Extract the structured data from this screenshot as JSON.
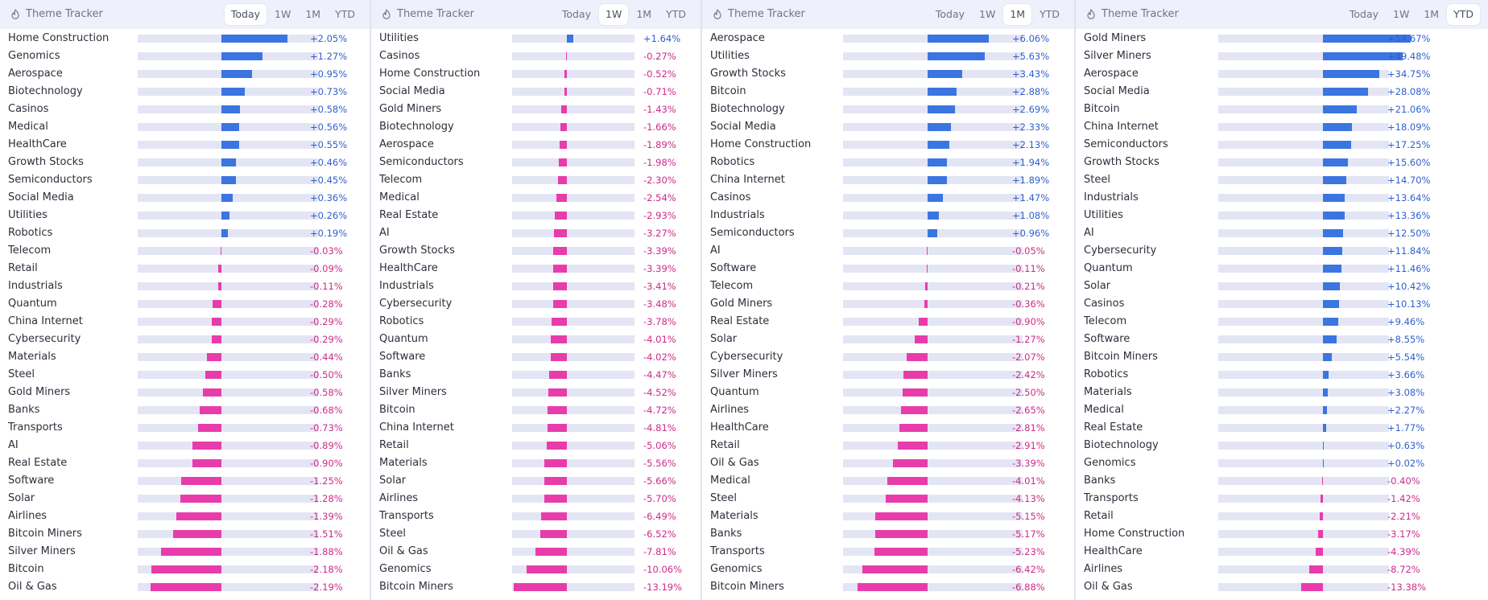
{
  "colors": {
    "positive_bar": "#3b75e0",
    "negative_bar": "#e83cab",
    "positive_text": "#2f5fcc",
    "negative_text": "#cc2a8a",
    "track": "#e4e5f4"
  },
  "tab_labels": [
    "Today",
    "1W",
    "1M",
    "YTD"
  ],
  "panels": [
    {
      "title": "Theme Tracker",
      "icon": "flame-icon",
      "active_tab": "Today",
      "rows": [
        {
          "name": "Home Construction",
          "value": 2.05,
          "label": "+2.05%"
        },
        {
          "name": "Genomics",
          "value": 1.27,
          "label": "+1.27%"
        },
        {
          "name": "Aerospace",
          "value": 0.95,
          "label": "+0.95%"
        },
        {
          "name": "Biotechnology",
          "value": 0.73,
          "label": "+0.73%"
        },
        {
          "name": "Casinos",
          "value": 0.58,
          "label": "+0.58%"
        },
        {
          "name": "Medical",
          "value": 0.56,
          "label": "+0.56%"
        },
        {
          "name": "HealthCare",
          "value": 0.55,
          "label": "+0.55%"
        },
        {
          "name": "Growth Stocks",
          "value": 0.46,
          "label": "+0.46%"
        },
        {
          "name": "Semiconductors",
          "value": 0.45,
          "label": "+0.45%"
        },
        {
          "name": "Social Media",
          "value": 0.36,
          "label": "+0.36%"
        },
        {
          "name": "Utilities",
          "value": 0.26,
          "label": "+0.26%"
        },
        {
          "name": "Robotics",
          "value": 0.19,
          "label": "+0.19%"
        },
        {
          "name": "Telecom",
          "value": -0.03,
          "label": "-0.03%"
        },
        {
          "name": "Retail",
          "value": -0.09,
          "label": "-0.09%"
        },
        {
          "name": "Industrials",
          "value": -0.11,
          "label": "-0.11%"
        },
        {
          "name": "Quantum",
          "value": -0.28,
          "label": "-0.28%"
        },
        {
          "name": "China Internet",
          "value": -0.29,
          "label": "-0.29%"
        },
        {
          "name": "Cybersecurity",
          "value": -0.29,
          "label": "-0.29%"
        },
        {
          "name": "Materials",
          "value": -0.44,
          "label": "-0.44%"
        },
        {
          "name": "Steel",
          "value": -0.5,
          "label": "-0.50%"
        },
        {
          "name": "Gold Miners",
          "value": -0.58,
          "label": "-0.58%"
        },
        {
          "name": "Banks",
          "value": -0.68,
          "label": "-0.68%"
        },
        {
          "name": "Transports",
          "value": -0.73,
          "label": "-0.73%"
        },
        {
          "name": "AI",
          "value": -0.89,
          "label": "-0.89%"
        },
        {
          "name": "Real Estate",
          "value": -0.9,
          "label": "-0.90%"
        },
        {
          "name": "Software",
          "value": -1.25,
          "label": "-1.25%"
        },
        {
          "name": "Solar",
          "value": -1.28,
          "label": "-1.28%"
        },
        {
          "name": "Airlines",
          "value": -1.39,
          "label": "-1.39%"
        },
        {
          "name": "Bitcoin Miners",
          "value": -1.51,
          "label": "-1.51%"
        },
        {
          "name": "Silver Miners",
          "value": -1.88,
          "label": "-1.88%"
        },
        {
          "name": "Bitcoin",
          "value": -2.18,
          "label": "-2.18%"
        },
        {
          "name": "Oil & Gas",
          "value": -2.19,
          "label": "-2.19%"
        }
      ]
    },
    {
      "title": "Theme Tracker",
      "icon": "flame-icon",
      "active_tab": "1W",
      "rows": [
        {
          "name": "Utilities",
          "value": 1.64,
          "label": "+1.64%"
        },
        {
          "name": "Casinos",
          "value": -0.27,
          "label": "-0.27%"
        },
        {
          "name": "Home Construction",
          "value": -0.52,
          "label": "-0.52%"
        },
        {
          "name": "Social Media",
          "value": -0.71,
          "label": "-0.71%"
        },
        {
          "name": "Gold Miners",
          "value": -1.43,
          "label": "-1.43%"
        },
        {
          "name": "Biotechnology",
          "value": -1.66,
          "label": "-1.66%"
        },
        {
          "name": "Aerospace",
          "value": -1.89,
          "label": "-1.89%"
        },
        {
          "name": "Semiconductors",
          "value": -1.98,
          "label": "-1.98%"
        },
        {
          "name": "Telecom",
          "value": -2.3,
          "label": "-2.30%"
        },
        {
          "name": "Medical",
          "value": -2.54,
          "label": "-2.54%"
        },
        {
          "name": "Real Estate",
          "value": -2.93,
          "label": "-2.93%"
        },
        {
          "name": "AI",
          "value": -3.27,
          "label": "-3.27%"
        },
        {
          "name": "Growth Stocks",
          "value": -3.39,
          "label": "-3.39%"
        },
        {
          "name": "HealthCare",
          "value": -3.39,
          "label": "-3.39%"
        },
        {
          "name": "Industrials",
          "value": -3.41,
          "label": "-3.41%"
        },
        {
          "name": "Cybersecurity",
          "value": -3.48,
          "label": "-3.48%"
        },
        {
          "name": "Robotics",
          "value": -3.78,
          "label": "-3.78%"
        },
        {
          "name": "Quantum",
          "value": -4.01,
          "label": "-4.01%"
        },
        {
          "name": "Software",
          "value": -4.02,
          "label": "-4.02%"
        },
        {
          "name": "Banks",
          "value": -4.47,
          "label": "-4.47%"
        },
        {
          "name": "Silver Miners",
          "value": -4.52,
          "label": "-4.52%"
        },
        {
          "name": "Bitcoin",
          "value": -4.72,
          "label": "-4.72%"
        },
        {
          "name": "China Internet",
          "value": -4.81,
          "label": "-4.81%"
        },
        {
          "name": "Retail",
          "value": -5.06,
          "label": "-5.06%"
        },
        {
          "name": "Materials",
          "value": -5.56,
          "label": "-5.56%"
        },
        {
          "name": "Solar",
          "value": -5.66,
          "label": "-5.66%"
        },
        {
          "name": "Airlines",
          "value": -5.7,
          "label": "-5.70%"
        },
        {
          "name": "Transports",
          "value": -6.49,
          "label": "-6.49%"
        },
        {
          "name": "Steel",
          "value": -6.52,
          "label": "-6.52%"
        },
        {
          "name": "Oil & Gas",
          "value": -7.81,
          "label": "-7.81%"
        },
        {
          "name": "Genomics",
          "value": -10.06,
          "label": "-10.06%"
        },
        {
          "name": "Bitcoin Miners",
          "value": -13.19,
          "label": "-13.19%"
        }
      ]
    },
    {
      "title": "Theme Tracker",
      "icon": "flame-icon",
      "active_tab": "1M",
      "rows": [
        {
          "name": "Aerospace",
          "value": 6.06,
          "label": "+6.06%"
        },
        {
          "name": "Utilities",
          "value": 5.63,
          "label": "+5.63%"
        },
        {
          "name": "Growth Stocks",
          "value": 3.43,
          "label": "+3.43%"
        },
        {
          "name": "Bitcoin",
          "value": 2.88,
          "label": "+2.88%"
        },
        {
          "name": "Biotechnology",
          "value": 2.69,
          "label": "+2.69%"
        },
        {
          "name": "Social Media",
          "value": 2.33,
          "label": "+2.33%"
        },
        {
          "name": "Home Construction",
          "value": 2.13,
          "label": "+2.13%"
        },
        {
          "name": "Robotics",
          "value": 1.94,
          "label": "+1.94%"
        },
        {
          "name": "China Internet",
          "value": 1.89,
          "label": "+1.89%"
        },
        {
          "name": "Casinos",
          "value": 1.47,
          "label": "+1.47%"
        },
        {
          "name": "Industrials",
          "value": 1.08,
          "label": "+1.08%"
        },
        {
          "name": "Semiconductors",
          "value": 0.96,
          "label": "+0.96%"
        },
        {
          "name": "AI",
          "value": -0.05,
          "label": "-0.05%"
        },
        {
          "name": "Software",
          "value": -0.11,
          "label": "-0.11%"
        },
        {
          "name": "Telecom",
          "value": -0.21,
          "label": "-0.21%"
        },
        {
          "name": "Gold Miners",
          "value": -0.36,
          "label": "-0.36%"
        },
        {
          "name": "Real Estate",
          "value": -0.9,
          "label": "-0.90%"
        },
        {
          "name": "Solar",
          "value": -1.27,
          "label": "-1.27%"
        },
        {
          "name": "Cybersecurity",
          "value": -2.07,
          "label": "-2.07%"
        },
        {
          "name": "Silver Miners",
          "value": -2.42,
          "label": "-2.42%"
        },
        {
          "name": "Quantum",
          "value": -2.5,
          "label": "-2.50%"
        },
        {
          "name": "Airlines",
          "value": -2.65,
          "label": "-2.65%"
        },
        {
          "name": "HealthCare",
          "value": -2.81,
          "label": "-2.81%"
        },
        {
          "name": "Retail",
          "value": -2.91,
          "label": "-2.91%"
        },
        {
          "name": "Oil & Gas",
          "value": -3.39,
          "label": "-3.39%"
        },
        {
          "name": "Medical",
          "value": -4.01,
          "label": "-4.01%"
        },
        {
          "name": "Steel",
          "value": -4.13,
          "label": "-4.13%"
        },
        {
          "name": "Materials",
          "value": -5.15,
          "label": "-5.15%"
        },
        {
          "name": "Banks",
          "value": -5.17,
          "label": "-5.17%"
        },
        {
          "name": "Transports",
          "value": -5.23,
          "label": "-5.23%"
        },
        {
          "name": "Genomics",
          "value": -6.42,
          "label": "-6.42%"
        },
        {
          "name": "Bitcoin Miners",
          "value": -6.88,
          "label": "-6.88%"
        }
      ]
    },
    {
      "title": "Theme Tracker",
      "icon": "flame-icon",
      "active_tab": "YTD",
      "rows": [
        {
          "name": "Gold Miners",
          "value": 54.67,
          "label": "+54.67%"
        },
        {
          "name": "Silver Miners",
          "value": 49.48,
          "label": "+49.48%"
        },
        {
          "name": "Aerospace",
          "value": 34.75,
          "label": "+34.75%"
        },
        {
          "name": "Social Media",
          "value": 28.08,
          "label": "+28.08%"
        },
        {
          "name": "Bitcoin",
          "value": 21.06,
          "label": "+21.06%"
        },
        {
          "name": "China Internet",
          "value": 18.09,
          "label": "+18.09%"
        },
        {
          "name": "Semiconductors",
          "value": 17.25,
          "label": "+17.25%"
        },
        {
          "name": "Growth Stocks",
          "value": 15.6,
          "label": "+15.60%"
        },
        {
          "name": "Steel",
          "value": 14.7,
          "label": "+14.70%"
        },
        {
          "name": "Industrials",
          "value": 13.64,
          "label": "+13.64%"
        },
        {
          "name": "Utilities",
          "value": 13.36,
          "label": "+13.36%"
        },
        {
          "name": "AI",
          "value": 12.5,
          "label": "+12.50%"
        },
        {
          "name": "Cybersecurity",
          "value": 11.84,
          "label": "+11.84%"
        },
        {
          "name": "Quantum",
          "value": 11.46,
          "label": "+11.46%"
        },
        {
          "name": "Solar",
          "value": 10.42,
          "label": "+10.42%"
        },
        {
          "name": "Casinos",
          "value": 10.13,
          "label": "+10.13%"
        },
        {
          "name": "Telecom",
          "value": 9.46,
          "label": "+9.46%"
        },
        {
          "name": "Software",
          "value": 8.55,
          "label": "+8.55%"
        },
        {
          "name": "Bitcoin Miners",
          "value": 5.54,
          "label": "+5.54%"
        },
        {
          "name": "Robotics",
          "value": 3.66,
          "label": "+3.66%"
        },
        {
          "name": "Materials",
          "value": 3.08,
          "label": "+3.08%"
        },
        {
          "name": "Medical",
          "value": 2.27,
          "label": "+2.27%"
        },
        {
          "name": "Real Estate",
          "value": 1.77,
          "label": "+1.77%"
        },
        {
          "name": "Biotechnology",
          "value": 0.63,
          "label": "+0.63%"
        },
        {
          "name": "Genomics",
          "value": 0.02,
          "label": "+0.02%"
        },
        {
          "name": "Banks",
          "value": -0.4,
          "label": "-0.40%"
        },
        {
          "name": "Transports",
          "value": -1.42,
          "label": "-1.42%"
        },
        {
          "name": "Retail",
          "value": -2.21,
          "label": "-2.21%"
        },
        {
          "name": "Home Construction",
          "value": -3.17,
          "label": "-3.17%"
        },
        {
          "name": "HealthCare",
          "value": -4.39,
          "label": "-4.39%"
        },
        {
          "name": "Airlines",
          "value": -8.72,
          "label": "-8.72%"
        },
        {
          "name": "Oil & Gas",
          "value": -13.38,
          "label": "-13.38%"
        }
      ]
    }
  ]
}
